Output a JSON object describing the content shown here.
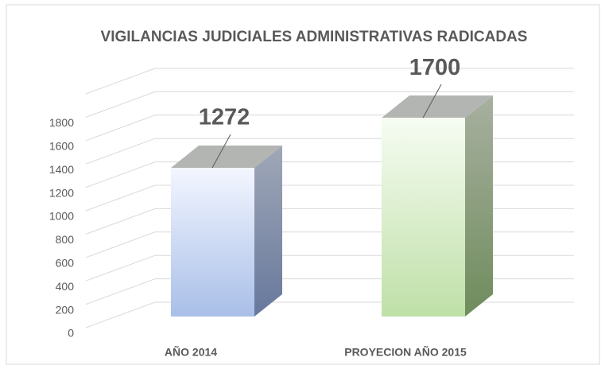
{
  "chart_data": {
    "type": "bar3d",
    "title": "VIGILANCIAS JUDICIALES ADMINISTRATIVAS RADICADAS",
    "categories": [
      "AÑO 2014",
      "PROYECION AÑO 2015"
    ],
    "values": [
      1272,
      1700
    ],
    "colors": [
      "#a9bfe8",
      "#bfe0a8"
    ],
    "ylim": [
      0,
      2000
    ],
    "yticks": [
      0,
      200,
      400,
      600,
      800,
      1000,
      1200,
      1400,
      1600,
      1800
    ],
    "grid": true
  }
}
